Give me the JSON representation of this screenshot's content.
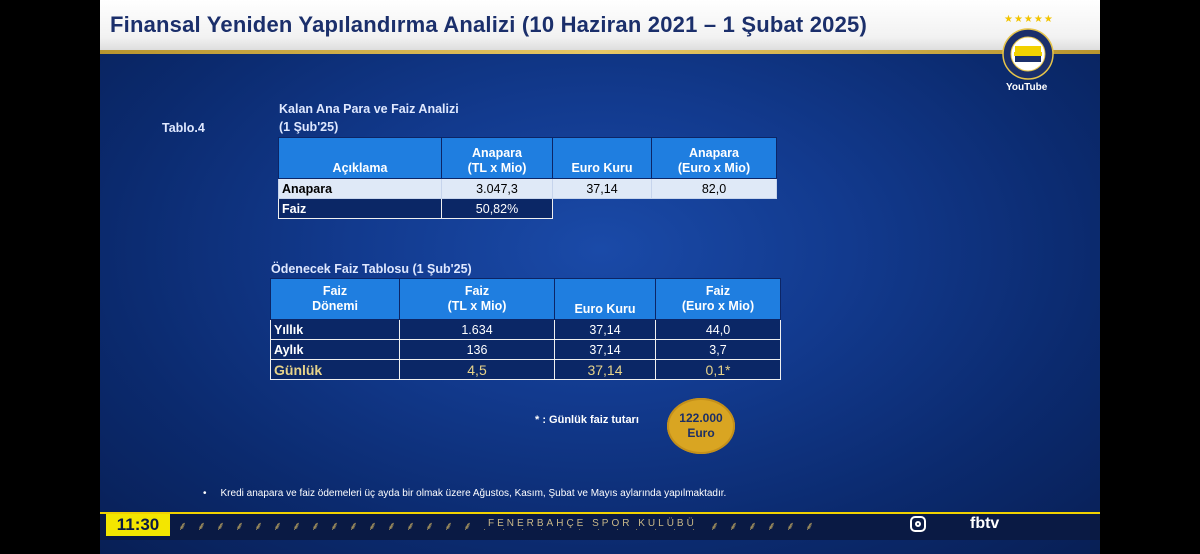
{
  "header": {
    "title": "Finansal Yeniden Yapılandırma Analizi (10 Haziran 2021 – 1 Şubat 2025)"
  },
  "channel": {
    "logo_icon": "fenerbahce-crest-icon",
    "youtube_label": "YouTube",
    "stars": "★★★★★"
  },
  "table1": {
    "table_label": "Tablo.4",
    "title_line1": "Kalan Ana Para ve Faiz Analizi",
    "title_line2": "(1 Şub'25)",
    "headers": [
      {
        "line1": "",
        "line2": "Açıklama"
      },
      {
        "line1": "Anapara",
        "line2": "(TL x Mio)"
      },
      {
        "line1": "",
        "line2": "Euro Kuru"
      },
      {
        "line1": "Anapara",
        "line2": "(Euro x Mio)"
      }
    ],
    "rows": [
      {
        "label": "Anapara",
        "tl": "3.047,3",
        "euro_kuru": "37,14",
        "euro": "82,0"
      },
      {
        "label": "Faiz",
        "tl": "50,82%"
      }
    ]
  },
  "table2": {
    "title": "Ödenecek Faiz Tablosu (1 Şub'25)",
    "headers": [
      {
        "line1": "Faiz",
        "line2": "Dönemi"
      },
      {
        "line1": "Faiz",
        "line2": "(TL x Mio)"
      },
      {
        "line1": "",
        "line2": "Euro Kuru"
      },
      {
        "line1": "Faiz",
        "line2": "(Euro x Mio)"
      }
    ],
    "rows": [
      {
        "label": "Yıllık",
        "tl": "1.634",
        "euro_kuru": "37,14",
        "euro": "44,0"
      },
      {
        "label": "Aylık",
        "tl": "136",
        "euro_kuru": "37,14",
        "euro": "3,7"
      },
      {
        "label": "Günlük",
        "tl": "4,5",
        "euro_kuru": "37,14",
        "euro": "0,1*"
      }
    ]
  },
  "daily_note": {
    "text": "* : Günlük faiz tutarı",
    "amount_line1": "122.000",
    "amount_line2": "Euro"
  },
  "footnote": {
    "bullet": "•",
    "text": "Kredi anapara ve faiz ödemeleri üç ayda bir olmak üzere Ağustos, Kasım, Şubat ve Mayıs aylarında yapılmaktadır."
  },
  "ticker": {
    "time": "11:30",
    "brand": "FENERBAHÇE SPOR KULÜBÜ",
    "channel": "fbtv",
    "instagram_icon": "instagram-icon"
  },
  "colors": {
    "accent": "#1f7ee0",
    "gold": "#d9a522",
    "ticker_yellow": "#f3e600"
  }
}
